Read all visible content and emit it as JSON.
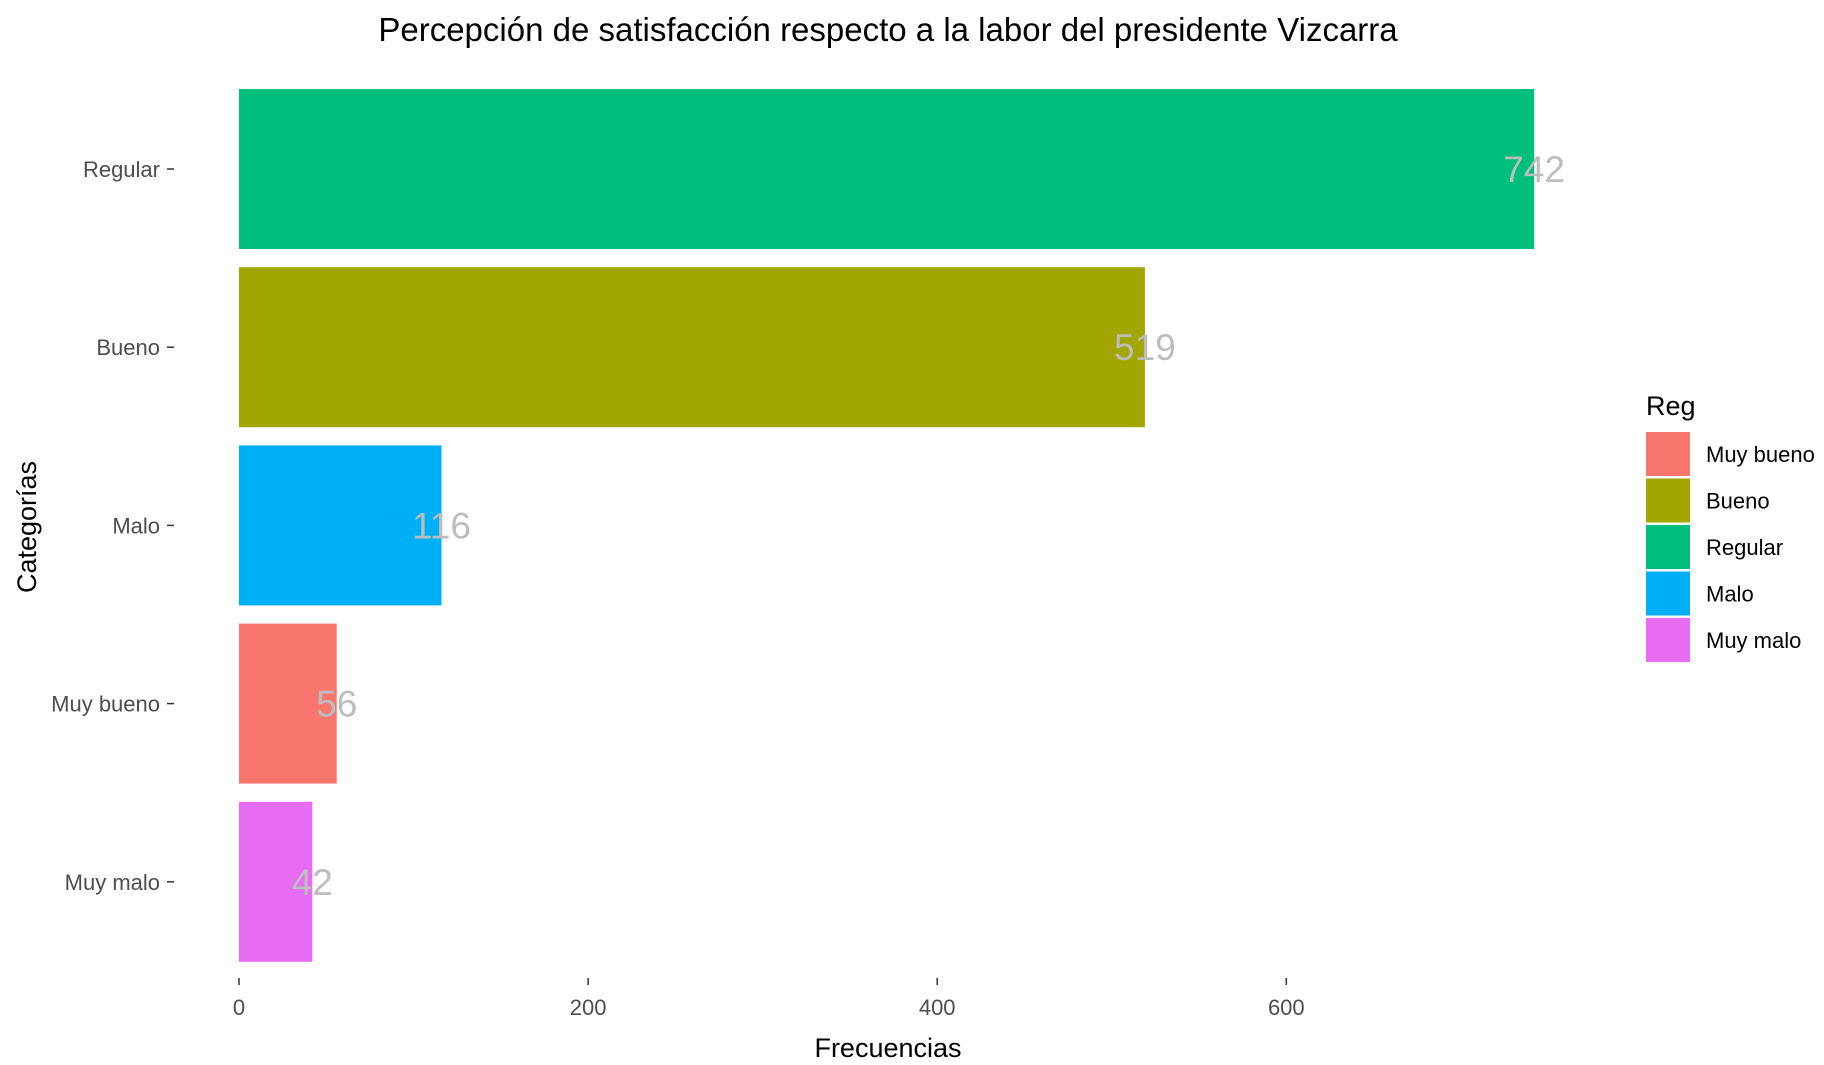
{
  "chart_data": {
    "type": "bar",
    "orientation": "horizontal",
    "title": "Percepción de satisfacción respecto a la labor del presidente Vizcarra",
    "xlabel": "Frecuencias",
    "ylabel": "Categorías",
    "xlim": [
      0,
      760
    ],
    "xticks": [
      0,
      200,
      400,
      600
    ],
    "grid": false,
    "legend_position": "right",
    "categories": [
      "Regular",
      "Bueno",
      "Malo",
      "Muy bueno",
      "Muy malo"
    ],
    "values": [
      742,
      519,
      116,
      56,
      42
    ],
    "colors": {
      "Muy bueno": "#F8766D",
      "Bueno": "#A3A500",
      "Regular": "#00BF7D",
      "Malo": "#00B0F6",
      "Muy malo": "#E76BF3"
    },
    "legend": {
      "title": "Reg",
      "entries": [
        "Muy bueno",
        "Bueno",
        "Regular",
        "Malo",
        "Muy malo"
      ]
    }
  }
}
